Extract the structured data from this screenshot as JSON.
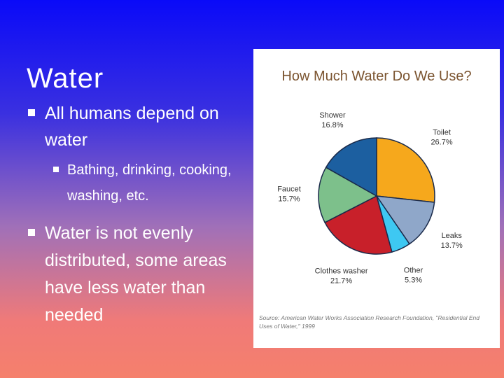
{
  "slide": {
    "title": "Water",
    "bullets": [
      {
        "text": "All humans depend on water",
        "sub": [
          "Bathing, drinking, cooking, washing, etc."
        ]
      },
      {
        "text": "Water is not evenly distributed, some areas have less water than needed"
      }
    ]
  },
  "chart_data": {
    "type": "pie",
    "title": "How Much Water Do We Use?",
    "categories": [
      "Toilet",
      "Leaks",
      "Other",
      "Clothes washer",
      "Faucet",
      "Shower"
    ],
    "values": [
      26.7,
      13.7,
      5.3,
      21.7,
      15.7,
      16.8
    ],
    "value_labels": [
      "26.7%",
      "13.7%",
      "5.3%",
      "21.7%",
      "15.7%",
      "16.8%"
    ],
    "colors": [
      "#f6a81c",
      "#8fa7c9",
      "#3ec8f2",
      "#c8202a",
      "#7dc08b",
      "#1c5fa0"
    ],
    "source": "Source: American Water Works Association Research Foundation, \"Residential End Uses of Water,\" 1999"
  }
}
